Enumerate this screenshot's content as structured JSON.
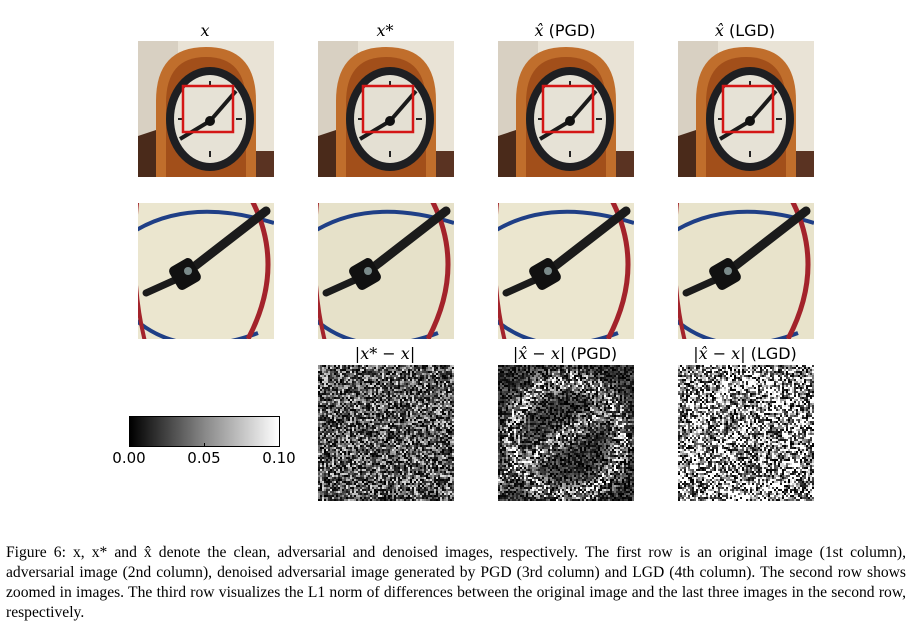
{
  "columns": [
    {
      "label_math": "x",
      "label_text": ""
    },
    {
      "label_math": "x*",
      "label_text": ""
    },
    {
      "label_math": "x̂",
      "label_text": " (PGD)"
    },
    {
      "label_math": "x̂",
      "label_text": " (LGD)"
    }
  ],
  "diff_titles": [
    {
      "label_math": "|x* − x|",
      "label_text": ""
    },
    {
      "label_math": "|x̂ − x|",
      "label_text": " (PGD)"
    },
    {
      "label_math": "|x̂ − x|",
      "label_text": " (LGD)"
    }
  ],
  "colorbar": {
    "ticks": [
      "0.00",
      "0.05",
      "0.10"
    ],
    "min": 0.0,
    "max": 0.1
  },
  "caption": {
    "figure_label": "Figure 6:",
    "text": " x, x* and x̂ denote the clean, adversarial and denoised images, respectively. The first row is an original image (1st column), adversarial image (2nd column), denoised adversarial image generated by PGD (3rd column) and LGD (4th column). The second row shows zoomed in images. The third row visualizes the L1 norm of differences between the original image and the last three images in the second row, respectively."
  }
}
